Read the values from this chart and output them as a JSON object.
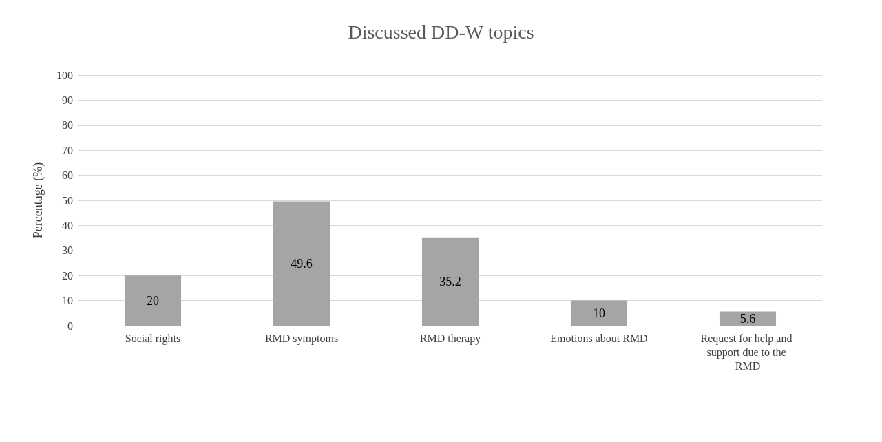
{
  "chart_data": {
    "type": "bar",
    "title": "Discussed DD-W topics",
    "ylabel": "Percentage (%)",
    "categories": [
      "Social rights",
      "RMD symptoms",
      "RMD therapy",
      "Emotions about RMD",
      "Request for help and support due to the RMD"
    ],
    "values": [
      20,
      49.6,
      35.2,
      10,
      5.6
    ],
    "color": "#a5a5a5",
    "ylim": [
      0,
      100
    ],
    "yticks": [
      0,
      10,
      20,
      30,
      40,
      50,
      60,
      70,
      80,
      90,
      100
    ],
    "grid": "y",
    "data_labels": true
  }
}
